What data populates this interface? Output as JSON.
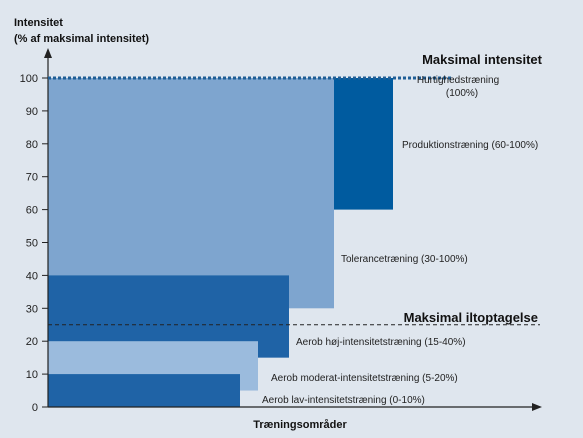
{
  "chart_data": {
    "type": "bar",
    "ylabel_lines": [
      "Intensitet",
      "(% af maksimal intensitet)"
    ],
    "xlabel": "Træningsområder",
    "ylim": [
      0,
      100
    ],
    "yticks": [
      0,
      10,
      20,
      30,
      40,
      50,
      60,
      70,
      80,
      90,
      100
    ],
    "colors": {
      "light": "#b8cce6",
      "mid": "#7ea5cf",
      "midlight": "#9bbbdd",
      "dark": "#1f63a6",
      "darker": "#005b9f",
      "dashed_dark": "#1f5e96",
      "axis": "#222222"
    },
    "bands": [
      {
        "name": "Tolerancetræning",
        "label": "Tolerancetræning (30-100%)",
        "min": 30,
        "max": 100,
        "shade": "mid"
      },
      {
        "name": "Produktionstræning",
        "label": "Produktionstræning (60-100%)",
        "min": 60,
        "max": 100,
        "shade": "darker"
      },
      {
        "name": "Aerob høj-intensitetstræning",
        "label": "Aerob høj-intensitetstræning (15-40%)",
        "min": 15,
        "max": 40,
        "shade": "dark"
      },
      {
        "name": "Aerob moderat-intensitetstræning",
        "label": "Aerob moderat-intensitetstræning (5-20%)",
        "min": 5,
        "max": 20,
        "shade": "midlight"
      },
      {
        "name": "Aerob lav-intensitetstræning",
        "label": "Aerob lav-intensitetstræning (0-10%)",
        "min": 0,
        "max": 10,
        "shade": "dark"
      }
    ],
    "reference_lines": [
      {
        "name": "Maksimal intensitet",
        "value": 100,
        "style": "dotted"
      },
      {
        "name": "Maksimal iltoptagelse",
        "value": 25,
        "style": "dashed"
      }
    ],
    "annotations": {
      "hurtighed_line1": "Hurtighedstræning",
      "hurtighed_line2": "(100%)"
    }
  }
}
